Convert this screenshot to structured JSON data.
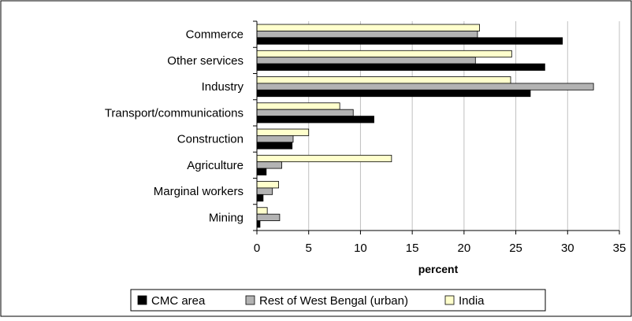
{
  "chart_data": {
    "type": "bar",
    "orientation": "horizontal",
    "title": "",
    "xlabel": "percent",
    "ylabel": "",
    "xlim": [
      0,
      35
    ],
    "xticks": [
      0,
      5,
      10,
      15,
      20,
      25,
      30,
      35
    ],
    "grid": "vertical",
    "legend_position": "bottom",
    "categories": [
      "Commerce",
      "Other services",
      "Industry",
      "Transport/communications",
      "Construction",
      "Agriculture",
      "Marginal workers",
      "Mining"
    ],
    "series": [
      {
        "name": "CMC area",
        "color": "#000000",
        "values": [
          29.5,
          27.8,
          26.4,
          11.3,
          3.4,
          0.9,
          0.6,
          0.3
        ]
      },
      {
        "name": "Rest of West Bengal (urban)",
        "color": "#b3b3b3",
        "values": [
          21.3,
          21.1,
          32.5,
          9.3,
          3.5,
          2.4,
          1.5,
          2.2
        ]
      },
      {
        "name": "India",
        "color": "#ffffcc",
        "values": [
          21.5,
          24.6,
          24.5,
          8.0,
          5.0,
          13.0,
          2.1,
          1.0
        ]
      }
    ]
  }
}
